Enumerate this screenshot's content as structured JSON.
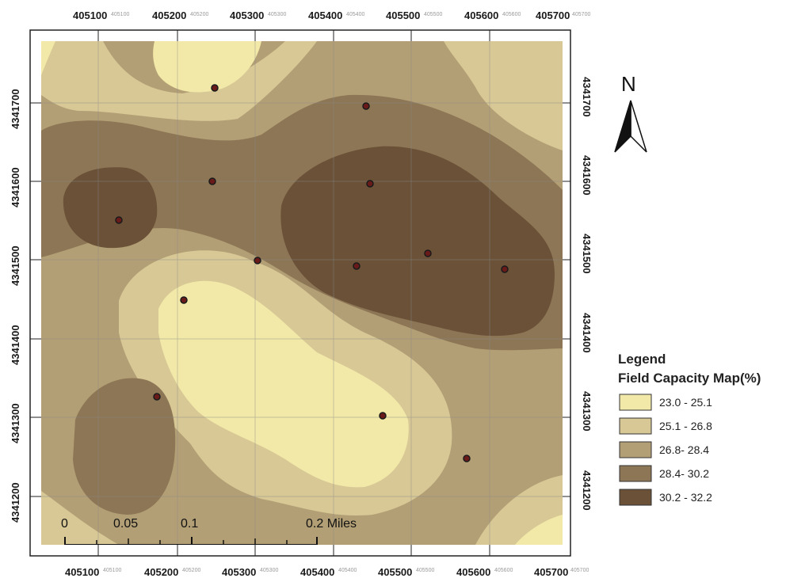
{
  "map": {
    "x_ticks": [
      "405100",
      "405200",
      "405300",
      "405400",
      "405500",
      "405600",
      "405700"
    ],
    "y_ticks": [
      "4341700",
      "4341600",
      "4341500",
      "4341400",
      "4341300",
      "4341200"
    ],
    "north_label": "N",
    "legend": {
      "title": "Legend",
      "subtitle": "Field Capacity Map(%)",
      "classes": [
        {
          "label": "23.0 - 25.1",
          "color": "#f2e9a8"
        },
        {
          "label": "25.1 - 26.8",
          "color": "#d8c895"
        },
        {
          "label": "26.8- 28.4",
          "color": "#b39f75"
        },
        {
          "label": "28.4- 30.2",
          "color": "#8c7655"
        },
        {
          "label": "30.2 - 32.2",
          "color": "#6a5138"
        }
      ]
    },
    "scale_bar": {
      "labels": [
        "0",
        "0.05",
        "0.1",
        "0.2 Miles"
      ]
    },
    "sample_points_count": 13
  }
}
